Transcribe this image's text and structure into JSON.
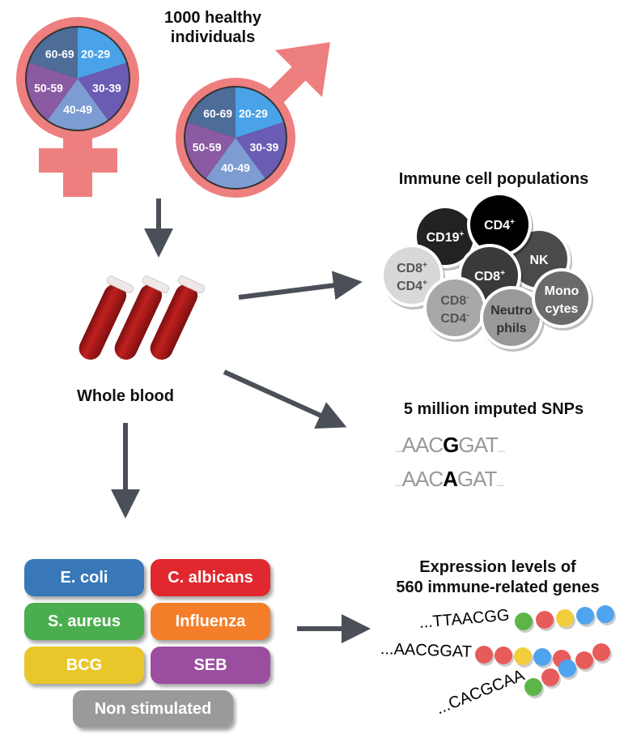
{
  "population": {
    "title_line1": "1000 healthy",
    "title_line2": "individuals",
    "age_groups": [
      "20-29",
      "30-39",
      "40-49",
      "50-59",
      "60-69"
    ],
    "age_colors": [
      "#4aa3e8",
      "#6a5cb2",
      "#7d9cd2",
      "#8a5aa2",
      "#4e6c98"
    ],
    "symbol_color": "#ee7f7f"
  },
  "blood": {
    "label": "Whole blood"
  },
  "cells": {
    "title": "Immune cell populations",
    "items": [
      {
        "label": "CD19",
        "sup": "+"
      },
      {
        "label": "CD4",
        "sup": "+"
      },
      {
        "label": "NK",
        "sup": ""
      },
      {
        "label": "CD8",
        "sup": "+",
        "label2": "CD4",
        "sup2": "+"
      },
      {
        "label": "CD8",
        "sup": "+"
      },
      {
        "label": "CD8",
        "sup": "-",
        "label2": "CD4",
        "sup2": "-"
      },
      {
        "label": "Neutro",
        "label2": "phils"
      },
      {
        "label": "Mono",
        "label2": "cytes"
      }
    ]
  },
  "snps": {
    "title": "5 million imputed SNPs",
    "seq1": {
      "pre": "AAC",
      "snp": "G",
      "post": "GAT"
    },
    "seq2": {
      "pre": "AAC",
      "snp": "A",
      "post": "GAT"
    },
    "ellipsis": "..."
  },
  "stimuli": [
    {
      "label": "E. coli",
      "color": "#3878b8"
    },
    {
      "label": "C. albicans",
      "color": "#e0282e"
    },
    {
      "label": "S. aureus",
      "color": "#4aae4e"
    },
    {
      "label": "Influenza",
      "color": "#f47e2a"
    },
    {
      "label": "BCG",
      "color": "#e9c72b"
    },
    {
      "label": "SEB",
      "color": "#9b4e9f"
    },
    {
      "label": "Non stimulated",
      "color": "#9a9a9a"
    }
  ],
  "expression": {
    "title_line1": "Expression levels of",
    "title_line2": "560 immune-related genes",
    "sequences": [
      "...TTAACGG",
      "...AACGGAT",
      "...CACGCAA"
    ]
  }
}
